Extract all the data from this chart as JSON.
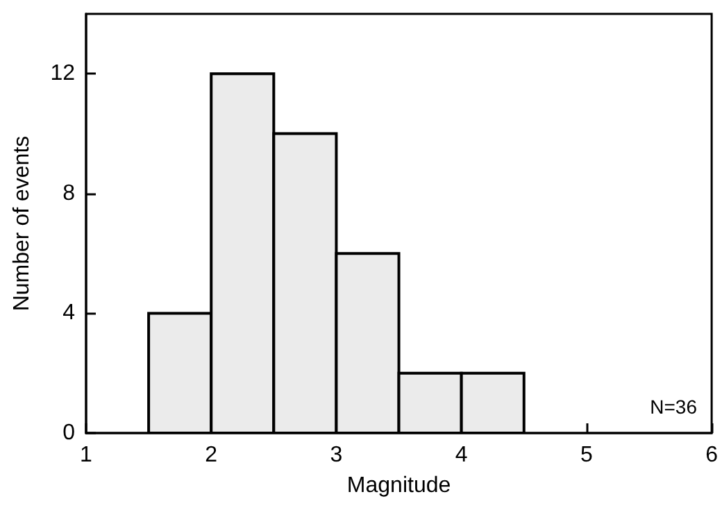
{
  "chart_data": {
    "type": "histogram",
    "xlabel": "Magnitude",
    "ylabel": "Number of events",
    "bins": [
      1.5,
      2,
      2.5,
      3,
      3.5,
      4,
      4.5
    ],
    "values": [
      4,
      12,
      10,
      6,
      2,
      2
    ],
    "color": "#ebebeb",
    "xlim": [
      1,
      6
    ],
    "xticks": [
      1,
      2,
      3,
      4,
      5,
      6
    ],
    "ylim": [
      0,
      14
    ],
    "yticks": [
      0,
      4,
      8,
      12
    ],
    "annotations": [
      "N=36"
    ]
  }
}
